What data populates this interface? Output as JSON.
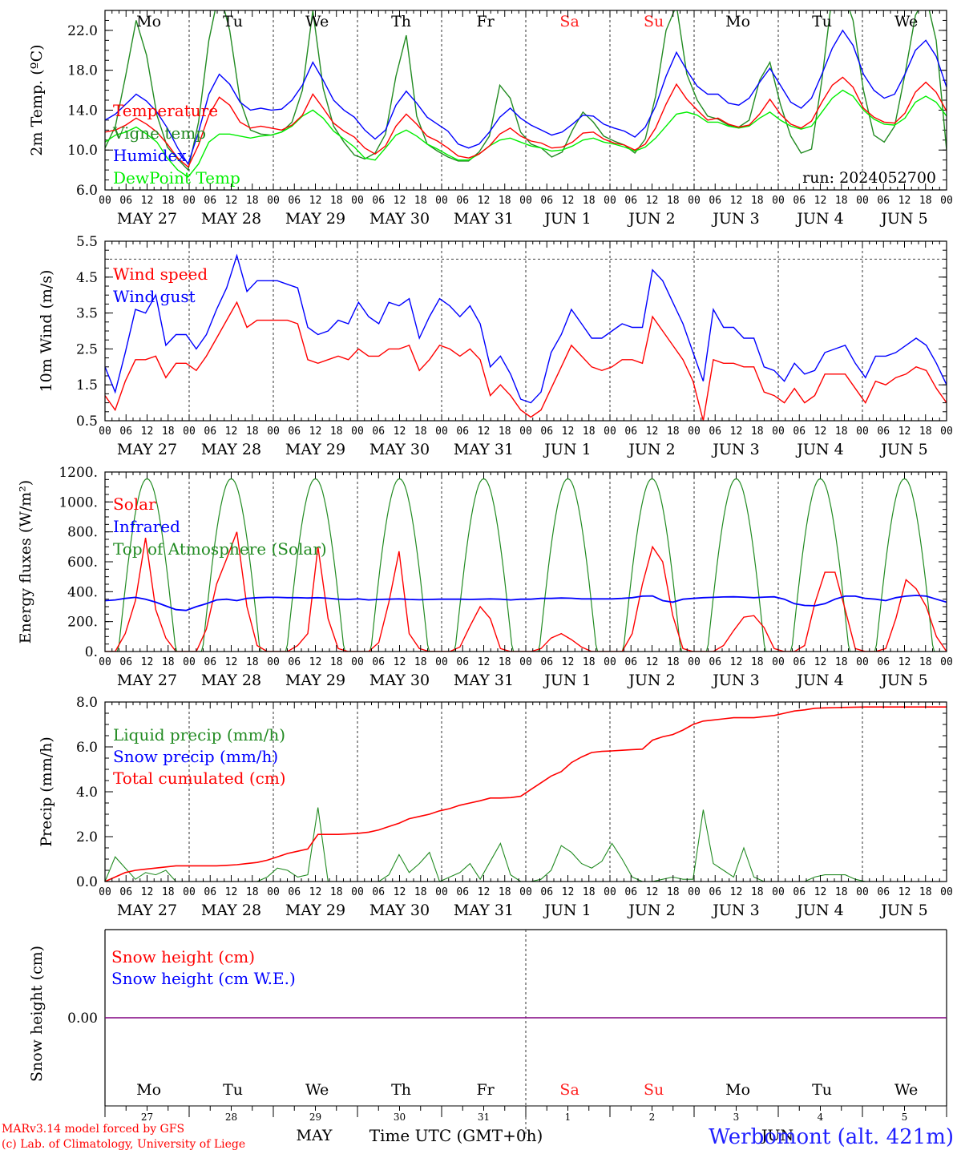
{
  "chart_data": [
    {
      "type": "line",
      "ylabel": "2m Temp. (ºC)",
      "ylim": [
        6,
        24
      ],
      "yticks": [
        6,
        10,
        14,
        18,
        22
      ],
      "ytick_labels": [
        "6.0",
        "10.0",
        "14.0",
        "18.0",
        "22.0"
      ],
      "run_label": "run: 2024052700",
      "weekdays": [
        "Mo",
        "Tu",
        "We",
        "Th",
        "Fr",
        "Sa",
        "Su",
        "Mo",
        "Tu",
        "We"
      ],
      "weekend_color": "#ff2020",
      "series": [
        {
          "name": "Temperature",
          "color": "#ff0000",
          "values": [
            11.8,
            12.0,
            12.5,
            13.2,
            12.6,
            11.8,
            10.6,
            9.2,
            8.3,
            10.5,
            13.5,
            15.3,
            14.5,
            12.8,
            12.2,
            12.4,
            12.2,
            12.0,
            12.5,
            13.5,
            15.6,
            14.2,
            12.7,
            11.9,
            11.3,
            10.2,
            9.6,
            10.4,
            12.4,
            13.6,
            12.6,
            11.4,
            10.9,
            10.2,
            9.4,
            9.2,
            9.6,
            10.4,
            11.6,
            12.2,
            11.4,
            10.9,
            10.7,
            10.2,
            10.3,
            10.8,
            11.7,
            11.8,
            11.1,
            10.7,
            10.5,
            10.0,
            10.6,
            12.2,
            14.6,
            16.6,
            15.1,
            14.0,
            13.0,
            13.2,
            12.6,
            12.3,
            12.5,
            13.6,
            15.1,
            13.6,
            12.6,
            12.2,
            12.9,
            14.8,
            16.5,
            17.3,
            16.3,
            14.2,
            13.3,
            12.8,
            12.7,
            13.7,
            15.8,
            16.8,
            15.8,
            13.9
          ]
        },
        {
          "name": "Vigne temp",
          "color": "#228b22",
          "values": [
            10.2,
            12.4,
            17.5,
            23.0,
            19.5,
            13.5,
            10.3,
            9.1,
            8.0,
            12.8,
            21.0,
            26.0,
            22.0,
            15.0,
            12.0,
            11.6,
            11.5,
            11.8,
            12.8,
            16.0,
            24.0,
            16.2,
            12.4,
            10.8,
            9.5,
            9.1,
            9.7,
            11.6,
            17.4,
            21.5,
            13.4,
            10.6,
            9.9,
            9.3,
            8.9,
            8.9,
            9.8,
            11.4,
            16.5,
            15.2,
            11.8,
            10.6,
            10.2,
            9.3,
            9.8,
            12.0,
            13.8,
            12.8,
            11.4,
            10.9,
            10.5,
            9.7,
            11.1,
            15.4,
            22.0,
            24.5,
            17.6,
            15.0,
            13.4,
            13.1,
            12.5,
            12.3,
            13.0,
            17.0,
            18.8,
            14.6,
            11.4,
            9.7,
            10.1,
            17.0,
            25.6,
            26.0,
            23.0,
            16.0,
            11.5,
            10.8,
            12.4,
            17.6,
            23.5,
            25.5,
            21.0,
            10.0
          ]
        },
        {
          "name": "Humidex",
          "color": "#0000ff",
          "values": [
            13.0,
            13.6,
            14.6,
            15.6,
            14.9,
            13.8,
            12.2,
            10.2,
            8.6,
            11.8,
            15.6,
            17.6,
            16.6,
            14.8,
            14.0,
            14.2,
            14.0,
            14.1,
            15.0,
            16.5,
            18.8,
            17.0,
            15.0,
            14.0,
            13.3,
            12.0,
            11.1,
            12.0,
            14.5,
            15.9,
            14.7,
            13.3,
            12.6,
            11.9,
            10.6,
            10.2,
            10.6,
            11.8,
            13.3,
            14.2,
            13.2,
            12.5,
            12.0,
            11.5,
            11.8,
            12.6,
            13.5,
            13.4,
            12.6,
            12.2,
            11.9,
            11.3,
            12.3,
            14.4,
            17.4,
            19.8,
            18.0,
            16.4,
            15.6,
            15.6,
            14.7,
            14.5,
            15.2,
            16.8,
            18.2,
            16.5,
            14.8,
            14.2,
            15.2,
            17.6,
            20.2,
            22.0,
            20.5,
            17.6,
            16.0,
            15.2,
            15.6,
            17.6,
            20.0,
            21.0,
            19.4,
            16.3
          ]
        },
        {
          "name": "DewPoint Temp",
          "color": "#00ee00",
          "values": [
            10.8,
            11.5,
            11.8,
            12.3,
            11.6,
            10.8,
            9.2,
            8.0,
            7.3,
            8.6,
            10.8,
            11.6,
            11.6,
            11.4,
            11.2,
            11.4,
            11.5,
            11.8,
            12.4,
            13.4,
            14.0,
            13.2,
            11.9,
            11.1,
            10.3,
            9.2,
            9.0,
            10.2,
            11.5,
            12.0,
            11.4,
            10.6,
            10.1,
            9.5,
            9.0,
            9.0,
            9.6,
            10.4,
            11.0,
            11.2,
            10.8,
            10.4,
            10.2,
            9.9,
            10.0,
            10.4,
            11.0,
            11.2,
            10.8,
            10.6,
            10.3,
            9.9,
            10.3,
            11.2,
            12.4,
            13.6,
            13.8,
            13.5,
            12.8,
            12.8,
            12.4,
            12.2,
            12.4,
            13.2,
            13.8,
            13.0,
            12.4,
            12.1,
            12.4,
            13.8,
            15.2,
            16.0,
            15.4,
            14.0,
            13.1,
            12.6,
            12.5,
            13.2,
            14.8,
            15.4,
            14.8,
            13.4
          ]
        }
      ]
    },
    {
      "type": "line",
      "ylabel": "10m Wind (m/s)",
      "ylim": [
        0.5,
        5.5
      ],
      "yticks": [
        0.5,
        1.5,
        2.5,
        3.5,
        4.5,
        5.5
      ],
      "ytick_labels": [
        "0.5",
        "1.5",
        "2.5",
        "3.5",
        "4.5",
        "5.5"
      ],
      "reference_line": 5.0,
      "series": [
        {
          "name": "Wind speed",
          "color": "#ff0000",
          "values": [
            1.2,
            0.8,
            1.6,
            2.2,
            2.2,
            2.3,
            1.7,
            2.1,
            2.1,
            1.9,
            2.3,
            2.8,
            3.3,
            3.8,
            3.1,
            3.3,
            3.3,
            3.3,
            3.3,
            3.2,
            2.2,
            2.1,
            2.2,
            2.3,
            2.2,
            2.5,
            2.3,
            2.3,
            2.5,
            2.5,
            2.6,
            1.9,
            2.2,
            2.6,
            2.5,
            2.3,
            2.5,
            2.2,
            1.2,
            1.5,
            1.2,
            0.8,
            0.6,
            0.8,
            1.4,
            2.0,
            2.6,
            2.3,
            2.0,
            1.9,
            2.0,
            2.2,
            2.2,
            2.1,
            3.4,
            3.0,
            2.6,
            2.2,
            1.6,
            0.5,
            2.2,
            2.1,
            2.1,
            2.0,
            2.0,
            1.3,
            1.2,
            1.0,
            1.4,
            1.0,
            1.2,
            1.8,
            1.8,
            1.8,
            1.4,
            1.0,
            1.6,
            1.5,
            1.7,
            1.8,
            2.0,
            1.9,
            1.4,
            1.0
          ]
        },
        {
          "name": "Wind gust",
          "color": "#0000ff",
          "values": [
            2.0,
            1.3,
            2.4,
            3.6,
            3.5,
            4.0,
            2.6,
            2.9,
            2.9,
            2.5,
            2.9,
            3.6,
            4.2,
            5.1,
            4.1,
            4.4,
            4.4,
            4.4,
            4.3,
            4.2,
            3.1,
            2.9,
            3.0,
            3.3,
            3.2,
            3.8,
            3.4,
            3.2,
            3.8,
            3.7,
            3.9,
            2.8,
            3.4,
            3.9,
            3.7,
            3.4,
            3.7,
            3.2,
            2.0,
            2.3,
            1.8,
            1.1,
            1.0,
            1.3,
            2.4,
            2.9,
            3.6,
            3.2,
            2.8,
            2.8,
            3.0,
            3.2,
            3.1,
            3.1,
            4.7,
            4.4,
            3.8,
            3.2,
            2.4,
            1.6,
            3.6,
            3.1,
            3.1,
            2.8,
            2.8,
            2.0,
            1.9,
            1.6,
            2.1,
            1.8,
            1.9,
            2.4,
            2.5,
            2.6,
            2.1,
            1.7,
            2.3,
            2.3,
            2.4,
            2.6,
            2.8,
            2.6,
            2.1,
            1.5
          ]
        }
      ]
    },
    {
      "type": "line",
      "ylabel": "Energy fluxes (W/m²)",
      "ylim": [
        0,
        1200
      ],
      "yticks": [
        0,
        200,
        400,
        600,
        800,
        1000,
        1200
      ],
      "ytick_labels": [
        "0.",
        "200.",
        "400.",
        "600.",
        "800.",
        "1000.",
        "1200."
      ],
      "series": [
        {
          "name": "Solar",
          "color": "#ff0000",
          "values": [
            0,
            0,
            120,
            340,
            760,
            280,
            90,
            0,
            0,
            0,
            150,
            450,
            620,
            800,
            300,
            40,
            0,
            0,
            0,
            40,
            120,
            700,
            220,
            20,
            0,
            0,
            0,
            60,
            330,
            670,
            120,
            20,
            0,
            0,
            0,
            30,
            170,
            300,
            220,
            20,
            0,
            0,
            0,
            20,
            90,
            120,
            80,
            30,
            0,
            0,
            0,
            0,
            120,
            450,
            700,
            600,
            240,
            20,
            0,
            0,
            0,
            40,
            140,
            230,
            240,
            160,
            20,
            0,
            0,
            40,
            320,
            530,
            530,
            280,
            20,
            0,
            0,
            20,
            220,
            480,
            420,
            300,
            100,
            0
          ]
        },
        {
          "name": "Infrared",
          "color": "#0000ff",
          "values": [
            340,
            345,
            355,
            362,
            350,
            330,
            305,
            280,
            275,
            300,
            320,
            345,
            350,
            340,
            355,
            360,
            362,
            362,
            360,
            360,
            358,
            360,
            356,
            350,
            348,
            352,
            345,
            348,
            350,
            352,
            348,
            346,
            348,
            350,
            350,
            350,
            348,
            350,
            352,
            350,
            345,
            350,
            350,
            355,
            355,
            358,
            356,
            352,
            352,
            352,
            352,
            355,
            360,
            370,
            372,
            340,
            330,
            350,
            355,
            360,
            362,
            365,
            366,
            364,
            360,
            364,
            366,
            350,
            320,
            308,
            306,
            320,
            350,
            370,
            370,
            355,
            350,
            340,
            360,
            370,
            375,
            370,
            350,
            330
          ]
        },
        {
          "name": "Top of Atmosphere (Solar)",
          "color": "#228b22",
          "daily_peak": 1155
        }
      ]
    },
    {
      "type": "line",
      "ylabel": "Precip (mm/h)",
      "ylim": [
        0,
        8
      ],
      "yticks": [
        0,
        2,
        4,
        6,
        8
      ],
      "ytick_labels": [
        "0.0",
        "2.0",
        "4.0",
        "6.0",
        "8.0"
      ],
      "series": [
        {
          "name": "Liquid precip (mm/h)",
          "color": "#228b22",
          "values": [
            0.0,
            1.1,
            0.6,
            0.1,
            0.4,
            0.3,
            0.5,
            0.0,
            0.0,
            0.0,
            0.0,
            0.0,
            0.0,
            0.0,
            0.0,
            0.0,
            0.2,
            0.6,
            0.5,
            0.2,
            0.3,
            3.3,
            0.0,
            0.0,
            0.0,
            0.0,
            0.0,
            0.0,
            0.3,
            1.2,
            0.4,
            0.8,
            1.3,
            0.0,
            0.2,
            0.4,
            0.8,
            0.1,
            0.9,
            1.7,
            0.3,
            0.0,
            0.0,
            0.1,
            0.5,
            1.6,
            1.3,
            0.8,
            0.6,
            0.9,
            1.7,
            1.0,
            0.2,
            0.0,
            0.0,
            0.1,
            0.2,
            0.1,
            0.1,
            3.2,
            0.8,
            0.5,
            0.2,
            1.5,
            0.2,
            0.0,
            0.0,
            0.0,
            0.0,
            0.0,
            0.2,
            0.3,
            0.3,
            0.3,
            0.1,
            0.0,
            0.0,
            0.0,
            0.0,
            0.0,
            0.0,
            0.0,
            0.0,
            0.0
          ]
        },
        {
          "name": "Snow precip (mm/h)",
          "color": "#0000ff",
          "values": []
        },
        {
          "name": "Total cumulated (cm)",
          "color": "#ff0000",
          "values": [
            0.0,
            0.2,
            0.4,
            0.5,
            0.55,
            0.6,
            0.65,
            0.7,
            0.7,
            0.7,
            0.7,
            0.7,
            0.72,
            0.75,
            0.8,
            0.85,
            0.95,
            1.1,
            1.25,
            1.35,
            1.45,
            2.1,
            2.1,
            2.1,
            2.12,
            2.15,
            2.2,
            2.3,
            2.45,
            2.6,
            2.8,
            2.9,
            3.0,
            3.15,
            3.25,
            3.4,
            3.5,
            3.6,
            3.72,
            3.72,
            3.74,
            3.8,
            4.1,
            4.4,
            4.7,
            4.9,
            5.3,
            5.55,
            5.75,
            5.8,
            5.82,
            5.85,
            5.88,
            5.9,
            6.3,
            6.45,
            6.55,
            6.75,
            7.0,
            7.15,
            7.2,
            7.25,
            7.3,
            7.3,
            7.3,
            7.35,
            7.4,
            7.5,
            7.6,
            7.65,
            7.72,
            7.74,
            7.75,
            7.76,
            7.77,
            7.78,
            7.78,
            7.78,
            7.78,
            7.78,
            7.78,
            7.78,
            7.78,
            7.78
          ]
        }
      ]
    },
    {
      "type": "line",
      "ylabel": "Snow height (cm)",
      "ytick_labels": [
        "0.00"
      ],
      "series": [
        {
          "name": "Snow height (cm)",
          "color": "#ff0000",
          "values": [
            0
          ]
        },
        {
          "name": "Snow height (cm W.E.)",
          "color": "#0000ff",
          "values": [
            0
          ]
        }
      ],
      "day_numbers": [
        "27",
        "28",
        "29",
        "30",
        "31",
        "1",
        "2",
        "3",
        "4",
        "5"
      ],
      "month_labels": [
        "MAY",
        "JUN"
      ],
      "xlabel": "Time UTC (GMT+0h)"
    }
  ],
  "x_axis": {
    "hour_labels": [
      "00",
      "06",
      "12",
      "18"
    ],
    "day_labels": [
      "MAY 27",
      "MAY 28",
      "MAY 29",
      "MAY 30",
      "MAY 31",
      "JUN  1",
      "JUN  2",
      "JUN  3",
      "JUN  4",
      "JUN  5"
    ]
  },
  "footer": {
    "credit_line1": "MARv3.14 model forced by GFS",
    "credit_line2": "(c) Lab. of Climatology, University of Liege",
    "station": "Werbomont (alt. 421m)"
  }
}
